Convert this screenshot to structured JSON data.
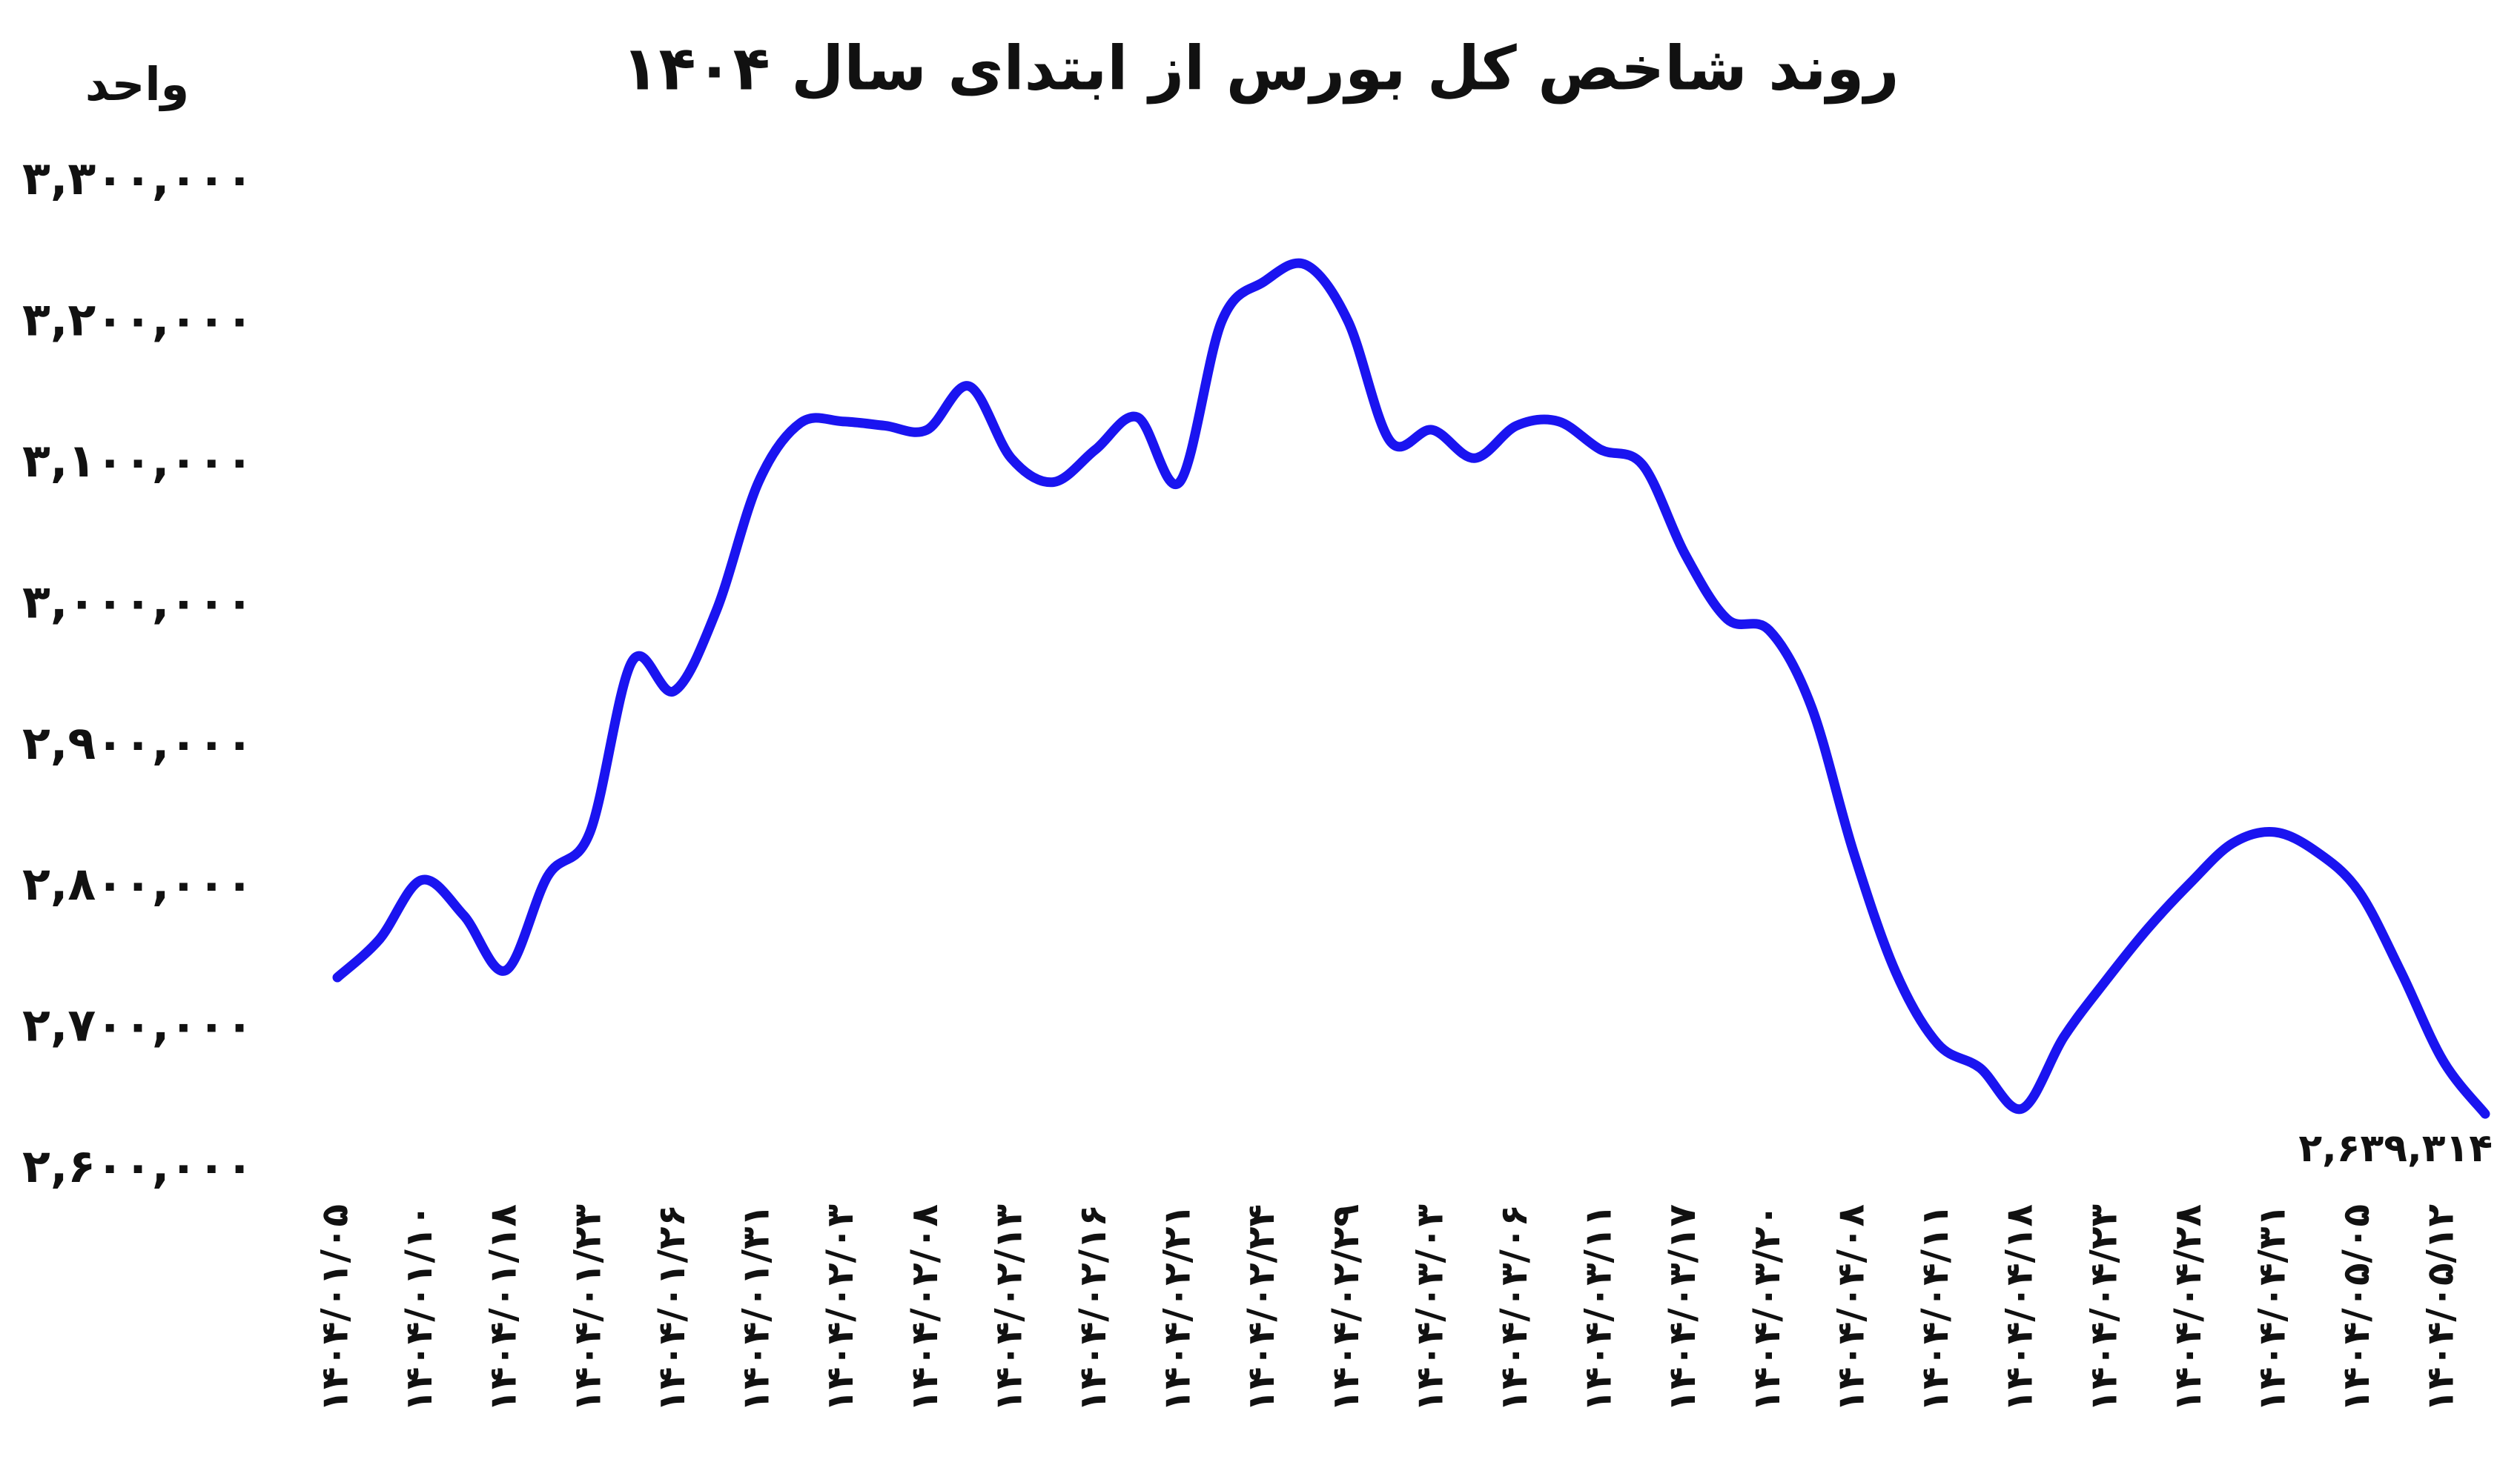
{
  "chart_data": {
    "type": "line",
    "title": "روند شاخص کل بورس از ابتدای سال ۱۴۰۴",
    "y_label": "واحد",
    "color": "#1a14f0",
    "grid": false,
    "categories": [
      "۱۴۰۴/۰۱/۰۵",
      null,
      "۱۴۰۴/۰۱/۱۰",
      null,
      "۱۴۰۴/۰۱/۱۸",
      null,
      "۱۴۰۴/۰۱/۲۳",
      null,
      "۱۴۰۴/۰۱/۲۶",
      null,
      "۱۴۰۴/۰۱/۳۱",
      null,
      "۱۴۰۴/۰۲/۰۳",
      null,
      "۱۴۰۴/۰۲/۰۸",
      null,
      "۱۴۰۴/۰۲/۱۳",
      null,
      "۱۴۰۴/۰۲/۱۶",
      null,
      "۱۴۰۴/۰۲/۲۱",
      null,
      "۱۴۰۴/۰۲/۲۴",
      null,
      "۱۴۰۴/۰۲/۲۹",
      null,
      "۱۴۰۴/۰۳/۰۳",
      null,
      "۱۴۰۴/۰۳/۰۶",
      null,
      "۱۴۰۴/۰۳/۱۱",
      null,
      "۱۴۰۴/۰۳/۱۷",
      null,
      "۱۴۰۴/۰۳/۲۰",
      null,
      "۱۴۰۴/۰۴/۰۸",
      null,
      "۱۴۰۴/۰۴/۱۱",
      null,
      "۱۴۰۴/۰۴/۱۸",
      null,
      "۱۴۰۴/۰۴/۲۳",
      null,
      "۱۴۰۴/۰۴/۲۸",
      null,
      "۱۴۰۴/۰۴/۳۱",
      null,
      "۱۴۰۴/۰۵/۰۵",
      null,
      "۱۴۰۴/۰۵/۱۲",
      null
    ],
    "values": [
      2736000,
      2763000,
      2805000,
      2780000,
      2741000,
      2808000,
      2839000,
      2960000,
      2939000,
      2996000,
      3087000,
      3129000,
      3130000,
      3127000,
      3124000,
      3155000,
      3104000,
      3087000,
      3110000,
      3133000,
      3087000,
      3201000,
      3229000,
      3241000,
      3201000,
      3116000,
      3124000,
      3104000,
      3127000,
      3130000,
      3110000,
      3099000,
      3036000,
      2990000,
      2982000,
      2928000,
      2825000,
      2740000,
      2689000,
      2672000,
      2643000,
      2694000,
      2734000,
      2771000,
      2803000,
      2831000,
      2839000,
      2825000,
      2797000,
      2740000,
      2677000,
      2639314
    ],
    "value_labels": [
      null,
      null,
      null,
      null,
      null,
      null,
      null,
      null,
      null,
      null,
      null,
      null,
      null,
      null,
      null,
      null,
      null,
      null,
      null,
      null,
      null,
      null,
      null,
      null,
      null,
      null,
      null,
      null,
      null,
      null,
      null,
      null,
      null,
      null,
      null,
      null,
      null,
      null,
      null,
      null,
      null,
      null,
      null,
      null,
      null,
      null,
      null,
      null,
      null,
      null,
      null,
      "۲,۶۳۹,۳۱۴"
    ],
    "ylim": [
      2600000,
      3300000
    ],
    "yticks": [
      {
        "value": 2600000,
        "label": "۲,۶۰۰,۰۰۰"
      },
      {
        "value": 2700000,
        "label": "۲,۷۰۰,۰۰۰"
      },
      {
        "value": 2800000,
        "label": "۲,۸۰۰,۰۰۰"
      },
      {
        "value": 2900000,
        "label": "۲,۹۰۰,۰۰۰"
      },
      {
        "value": 3000000,
        "label": "۳,۰۰۰,۰۰۰"
      },
      {
        "value": 3100000,
        "label": "۳,۱۰۰,۰۰۰"
      },
      {
        "value": 3200000,
        "label": "۳,۲۰۰,۰۰۰"
      },
      {
        "value": 3300000,
        "label": "۳,۳۰۰,۰۰۰"
      }
    ]
  }
}
